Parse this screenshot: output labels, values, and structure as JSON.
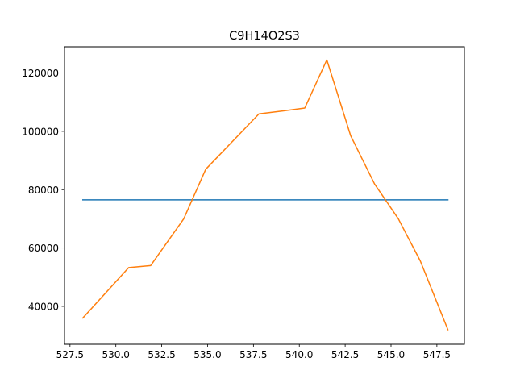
{
  "chart_data": {
    "type": "line",
    "title": "C9H14O2S3",
    "xlabel": "",
    "ylabel": "",
    "xlim": [
      527.2,
      549.0
    ],
    "ylim": [
      27000,
      129000
    ],
    "x_ticks": [
      527.5,
      530.0,
      532.5,
      535.0,
      537.5,
      540.0,
      542.5,
      545.0,
      547.5
    ],
    "x_tick_labels": [
      "527.5",
      "530.0",
      "532.5",
      "535.0",
      "537.5",
      "540.0",
      "542.5",
      "545.0",
      "547.5"
    ],
    "y_ticks": [
      40000,
      60000,
      80000,
      100000,
      120000
    ],
    "y_tick_labels": [
      "40000",
      "60000",
      "80000",
      "100000",
      "120000"
    ],
    "grid": false,
    "series": [
      {
        "color": "#1f77b4",
        "x": [
          528.2,
          548.1
        ],
        "y": [
          76500,
          76500
        ]
      },
      {
        "color": "#ff7f0e",
        "x": [
          528.2,
          530.7,
          531.9,
          533.7,
          534.9,
          537.8,
          539.1,
          540.3,
          541.5,
          542.8,
          544.1,
          545.4,
          546.6,
          548.1
        ],
        "y": [
          36000,
          53300,
          54000,
          70000,
          87000,
          106000,
          107000,
          108000,
          124500,
          98500,
          82000,
          70000,
          55500,
          32000
        ]
      }
    ]
  }
}
